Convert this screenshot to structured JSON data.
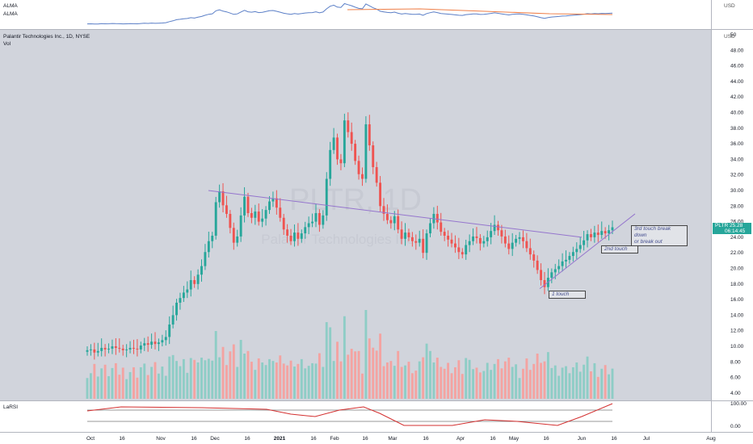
{
  "header": {
    "alma_label_1": "ALMA",
    "alma_label_2": "ALMA",
    "symbol_label": "Palantir Technologies Inc., 1D, NYSE",
    "vol_label": "Vol",
    "larsi_label": "LaRSI",
    "currency": "USD"
  },
  "watermark": {
    "ticker": "PLTR, 1D",
    "name": "Palantir Technologies Inc."
  },
  "price_tag": {
    "symbol": "PLTR",
    "price": "25.28",
    "countdown": "06:14:45"
  },
  "annotations": {
    "first": "1 touch",
    "second": "2nd touch",
    "third_line1": "3rd touch break down",
    "third_line2": "or break out"
  },
  "colors": {
    "up": "#26a69a",
    "down": "#ef5350",
    "vol_up": "#8ecdc6",
    "vol_down": "#f4a3a1",
    "trendline": "#9575cd",
    "alma_1": "#5b7fc7",
    "alma_2": "#ef7e47",
    "larsi": "#1b5e20",
    "larsi_down": "#d32f2f",
    "background": "#d1d4dc"
  },
  "chart_data": {
    "type": "candlestick",
    "title": "Palantir Technologies Inc., 1D, NYSE",
    "currency": "USD",
    "ylim": [
      3,
      50
    ],
    "y_ticks": [
      "50",
      "48.00",
      "46.00",
      "44.00",
      "42.00",
      "40.00",
      "38.00",
      "36.00",
      "34.00",
      "32.00",
      "30.00",
      "28.00",
      "26.00",
      "24.00",
      "22.00",
      "20.00",
      "18.00",
      "16.00",
      "14.00",
      "12.00",
      "10.00",
      "8.00",
      "6.00",
      "4.00"
    ],
    "x_ticks": [
      "Oct",
      "16",
      "Nov",
      "16",
      "Dec",
      "16",
      "2021",
      "16",
      "Feb",
      "16",
      "Mar",
      "16",
      "Apr",
      "16",
      "May",
      "16",
      "Jun",
      "16",
      "Jul",
      "Aug"
    ],
    "closes": [
      9.5,
      9.6,
      9.2,
      9.4,
      9.8,
      9.6,
      9.7,
      10.0,
      9.8,
      9.7,
      9.5,
      9.6,
      9.8,
      9.7,
      9.6,
      10.1,
      10.4,
      10.2,
      10.6,
      10.3,
      10.5,
      10.8,
      11.2,
      12.8,
      14.0,
      15.6,
      16.2,
      16.9,
      17.3,
      18.5,
      18.0,
      19.2,
      20.3,
      22.1,
      23.5,
      24.2,
      28.5,
      29.9,
      28.1,
      27.0,
      25.2,
      23.3,
      24.1,
      26.8,
      29.2,
      27.1,
      26.5,
      27.3,
      26.0,
      26.4,
      27.5,
      28.6,
      29.0,
      27.8,
      26.5,
      25.0,
      24.2,
      23.5,
      24.6,
      23.8,
      24.5,
      25.3,
      25.8,
      26.0,
      27.1,
      25.6,
      26.8,
      31.5,
      35.2,
      36.8,
      34.0,
      33.5,
      39.0,
      37.5,
      36.0,
      33.8,
      32.1,
      31.5,
      38.5,
      35.8,
      33.0,
      31.0,
      28.0,
      27.0,
      26.2,
      25.8,
      26.7,
      25.0,
      23.8,
      24.6,
      24.0,
      23.5,
      23.3,
      23.8,
      22.0,
      24.5,
      25.8,
      27.0,
      25.9,
      24.7,
      24.2,
      23.7,
      23.2,
      22.7,
      22.1,
      21.8,
      23.0,
      23.5,
      24.1,
      23.9,
      23.2,
      23.5,
      24.0,
      24.8,
      25.6,
      24.9,
      24.1,
      23.2,
      22.5,
      23.3,
      23.8,
      24.0,
      23.5,
      22.6,
      21.8,
      21.0,
      19.8,
      18.5,
      17.6,
      18.8,
      19.5,
      19.9,
      20.3,
      20.9,
      21.1,
      21.6,
      22.1,
      22.5,
      23.0,
      23.6,
      24.4,
      24.0,
      24.6,
      24.3,
      24.8,
      24.5,
      24.9,
      25.28
    ],
    "series": [
      {
        "name": "ALMA",
        "type": "line"
      },
      {
        "name": "ALMA",
        "type": "line"
      },
      {
        "name": "Vol",
        "type": "bar"
      },
      {
        "name": "LaRSI",
        "type": "line"
      }
    ],
    "larsi_ticks": [
      "100.00",
      "0.00"
    ],
    "annotations": [
      "1 touch",
      "2nd touch",
      "3rd touch break down or break out"
    ]
  }
}
